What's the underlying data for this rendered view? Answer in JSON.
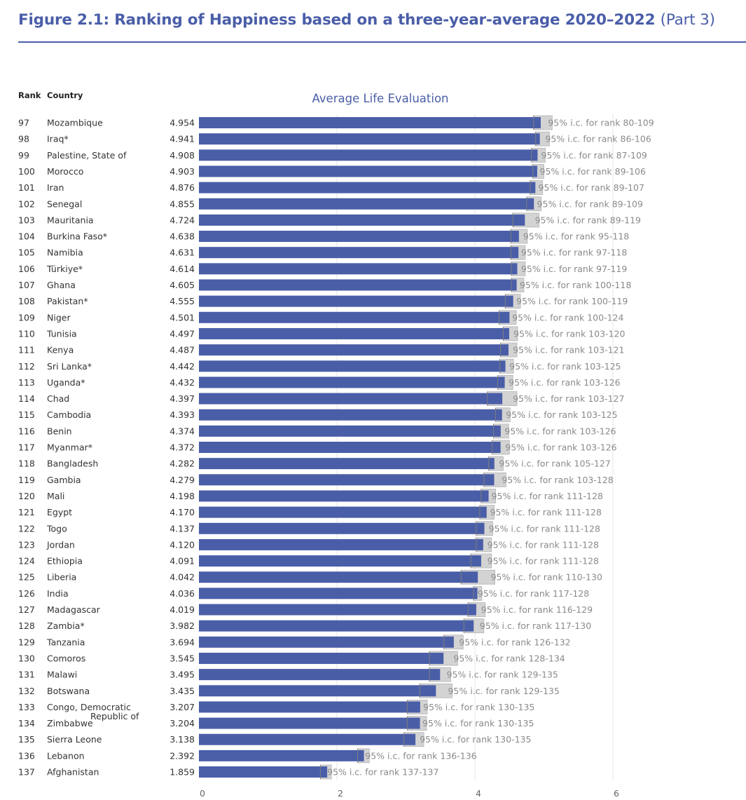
{
  "figure": {
    "title_main": "Figure 2.1: Ranking of Happiness based on a three-year-average 2020–2022",
    "title_part": "(Part 3)"
  },
  "columns": {
    "rank": "Rank",
    "country": "Country"
  },
  "colors": {
    "accent": "#4a5ea8",
    "bar": "#4a5ea8",
    "ci_band": "#d3d3d3",
    "grid": "#e6e6e6"
  },
  "chart_data": {
    "type": "bar",
    "orientation": "horizontal",
    "title": "Average Life Evaluation",
    "xlim": [
      0,
      6
    ],
    "x_ticks": [
      0,
      2,
      4,
      6
    ],
    "ci_label_prefix": "95% i.c. for rank",
    "rows": [
      {
        "rank": "97",
        "country": "Mozambique",
        "value": 4.954,
        "value_label": "4.954",
        "ci_rank": "80-109",
        "ci_low": 4.85,
        "ci_high": 5.12
      },
      {
        "rank": "98",
        "country": "Iraq*",
        "value": 4.941,
        "value_label": "4.941",
        "ci_rank": "86-106",
        "ci_low": 4.88,
        "ci_high": 5.08
      },
      {
        "rank": "99",
        "country": "Palestine, State of",
        "value": 4.908,
        "value_label": "4.908",
        "ci_rank": "87-109",
        "ci_low": 4.82,
        "ci_high": 5.02
      },
      {
        "rank": "100",
        "country": "Morocco",
        "value": 4.903,
        "value_label": "4.903",
        "ci_rank": "89-106",
        "ci_low": 4.84,
        "ci_high": 5.0
      },
      {
        "rank": "101",
        "country": "Iran",
        "value": 4.876,
        "value_label": "4.876",
        "ci_rank": "89-107",
        "ci_low": 4.8,
        "ci_high": 4.98
      },
      {
        "rank": "102",
        "country": "Senegal",
        "value": 4.855,
        "value_label": "4.855",
        "ci_rank": "89-109",
        "ci_low": 4.75,
        "ci_high": 4.96
      },
      {
        "rank": "103",
        "country": "Mauritania",
        "value": 4.724,
        "value_label": "4.724",
        "ci_rank": "89-119",
        "ci_low": 4.55,
        "ci_high": 4.93
      },
      {
        "rank": "104",
        "country": "Burkina Faso*",
        "value": 4.638,
        "value_label": "4.638",
        "ci_rank": "95-118",
        "ci_low": 4.52,
        "ci_high": 4.76
      },
      {
        "rank": "105",
        "country": "Namibia",
        "value": 4.631,
        "value_label": "4.631",
        "ci_rank": "97-118",
        "ci_low": 4.52,
        "ci_high": 4.73
      },
      {
        "rank": "106",
        "country": "Türkiye*",
        "value": 4.614,
        "value_label": "4.614",
        "ci_rank": "97-119",
        "ci_low": 4.53,
        "ci_high": 4.73
      },
      {
        "rank": "107",
        "country": "Ghana",
        "value": 4.605,
        "value_label": "4.605",
        "ci_rank": "100-118",
        "ci_low": 4.53,
        "ci_high": 4.71
      },
      {
        "rank": "108",
        "country": "Pakistan*",
        "value": 4.555,
        "value_label": "4.555",
        "ci_rank": "100-119",
        "ci_low": 4.44,
        "ci_high": 4.66
      },
      {
        "rank": "109",
        "country": "Niger",
        "value": 4.501,
        "value_label": "4.501",
        "ci_rank": "100-124",
        "ci_low": 4.35,
        "ci_high": 4.6
      },
      {
        "rank": "110",
        "country": "Tunisia",
        "value": 4.497,
        "value_label": "4.497",
        "ci_rank": "103-120",
        "ci_low": 4.41,
        "ci_high": 4.62
      },
      {
        "rank": "111",
        "country": "Kenya",
        "value": 4.487,
        "value_label": "4.487",
        "ci_rank": "103-121",
        "ci_low": 4.37,
        "ci_high": 4.61
      },
      {
        "rank": "112",
        "country": "Sri Lanka*",
        "value": 4.442,
        "value_label": "4.442",
        "ci_rank": "103-125",
        "ci_low": 4.36,
        "ci_high": 4.56
      },
      {
        "rank": "113",
        "country": "Uganda*",
        "value": 4.432,
        "value_label": "4.432",
        "ci_rank": "103-126",
        "ci_low": 4.33,
        "ci_high": 4.55
      },
      {
        "rank": "114",
        "country": "Chad",
        "value": 4.397,
        "value_label": "4.397",
        "ci_rank": "103-127",
        "ci_low": 4.18,
        "ci_high": 4.61
      },
      {
        "rank": "115",
        "country": "Cambodia",
        "value": 4.393,
        "value_label": "4.393",
        "ci_rank": "103-125",
        "ci_low": 4.3,
        "ci_high": 4.51
      },
      {
        "rank": "116",
        "country": "Benin",
        "value": 4.374,
        "value_label": "4.374",
        "ci_rank": "103-126",
        "ci_low": 4.27,
        "ci_high": 4.49
      },
      {
        "rank": "117",
        "country": "Myanmar*",
        "value": 4.372,
        "value_label": "4.372",
        "ci_rank": "103-126",
        "ci_low": 4.25,
        "ci_high": 4.5
      },
      {
        "rank": "118",
        "country": "Bangladesh",
        "value": 4.282,
        "value_label": "4.282",
        "ci_rank": "105-127",
        "ci_low": 4.2,
        "ci_high": 4.41
      },
      {
        "rank": "119",
        "country": "Gambia",
        "value": 4.279,
        "value_label": "4.279",
        "ci_rank": "103-128",
        "ci_low": 4.13,
        "ci_high": 4.45
      },
      {
        "rank": "120",
        "country": "Mali",
        "value": 4.198,
        "value_label": "4.198",
        "ci_rank": "111-128",
        "ci_low": 4.09,
        "ci_high": 4.3
      },
      {
        "rank": "121",
        "country": "Egypt",
        "value": 4.17,
        "value_label": "4.170",
        "ci_rank": "111-128",
        "ci_low": 4.07,
        "ci_high": 4.28
      },
      {
        "rank": "122",
        "country": "Togo",
        "value": 4.137,
        "value_label": "4.137",
        "ci_rank": "111-128",
        "ci_low": 4.02,
        "ci_high": 4.26
      },
      {
        "rank": "123",
        "country": "Jordan",
        "value": 4.12,
        "value_label": "4.120",
        "ci_rank": "111-128",
        "ci_low": 4.02,
        "ci_high": 4.24
      },
      {
        "rank": "124",
        "country": "Ethiopia",
        "value": 4.091,
        "value_label": "4.091",
        "ci_rank": "111-128",
        "ci_low": 3.94,
        "ci_high": 4.24
      },
      {
        "rank": "125",
        "country": "Liberia",
        "value": 4.042,
        "value_label": "4.042",
        "ci_rank": "110-130",
        "ci_low": 3.8,
        "ci_high": 4.29
      },
      {
        "rank": "126",
        "country": "India",
        "value": 4.036,
        "value_label": "4.036",
        "ci_rank": "117-128",
        "ci_low": 3.98,
        "ci_high": 4.1
      },
      {
        "rank": "127",
        "country": "Madagascar",
        "value": 4.019,
        "value_label": "4.019",
        "ci_rank": "116-129",
        "ci_low": 3.9,
        "ci_high": 4.15
      },
      {
        "rank": "128",
        "country": "Zambia*",
        "value": 3.982,
        "value_label": "3.982",
        "ci_rank": "117-130",
        "ci_low": 3.84,
        "ci_high": 4.13
      },
      {
        "rank": "129",
        "country": "Tanzania",
        "value": 3.694,
        "value_label": "3.694",
        "ci_rank": "126-132",
        "ci_low": 3.55,
        "ci_high": 3.83
      },
      {
        "rank": "130",
        "country": "Comoros",
        "value": 3.545,
        "value_label": "3.545",
        "ci_rank": "128-134",
        "ci_low": 3.34,
        "ci_high": 3.75
      },
      {
        "rank": "131",
        "country": "Malawi",
        "value": 3.495,
        "value_label": "3.495",
        "ci_rank": "129-135",
        "ci_low": 3.34,
        "ci_high": 3.65
      },
      {
        "rank": "132",
        "country": "Botswana",
        "value": 3.435,
        "value_label": "3.435",
        "ci_rank": "129-135",
        "ci_low": 3.2,
        "ci_high": 3.67
      },
      {
        "rank": "133",
        "country": "Congo, Democratic Republic of",
        "value": 3.207,
        "value_label": "3.207",
        "ci_rank": "130-135",
        "ci_low": 3.02,
        "ci_high": 3.31
      },
      {
        "rank": "134",
        "country": "Zimbabwe",
        "value": 3.204,
        "value_label": "3.204",
        "ci_rank": "130-135",
        "ci_low": 3.02,
        "ci_high": 3.3
      },
      {
        "rank": "135",
        "country": "Sierra Leone",
        "value": 3.138,
        "value_label": "3.138",
        "ci_rank": "130-135",
        "ci_low": 2.97,
        "ci_high": 3.26
      },
      {
        "rank": "136",
        "country": "Lebanon",
        "value": 2.392,
        "value_label": "2.392",
        "ci_rank": "136-136",
        "ci_low": 2.3,
        "ci_high": 2.47
      },
      {
        "rank": "137",
        "country": "Afghanistan",
        "value": 1.859,
        "value_label": "1.859",
        "ci_rank": "137-137",
        "ci_low": 1.76,
        "ci_high": 1.92
      }
    ]
  }
}
